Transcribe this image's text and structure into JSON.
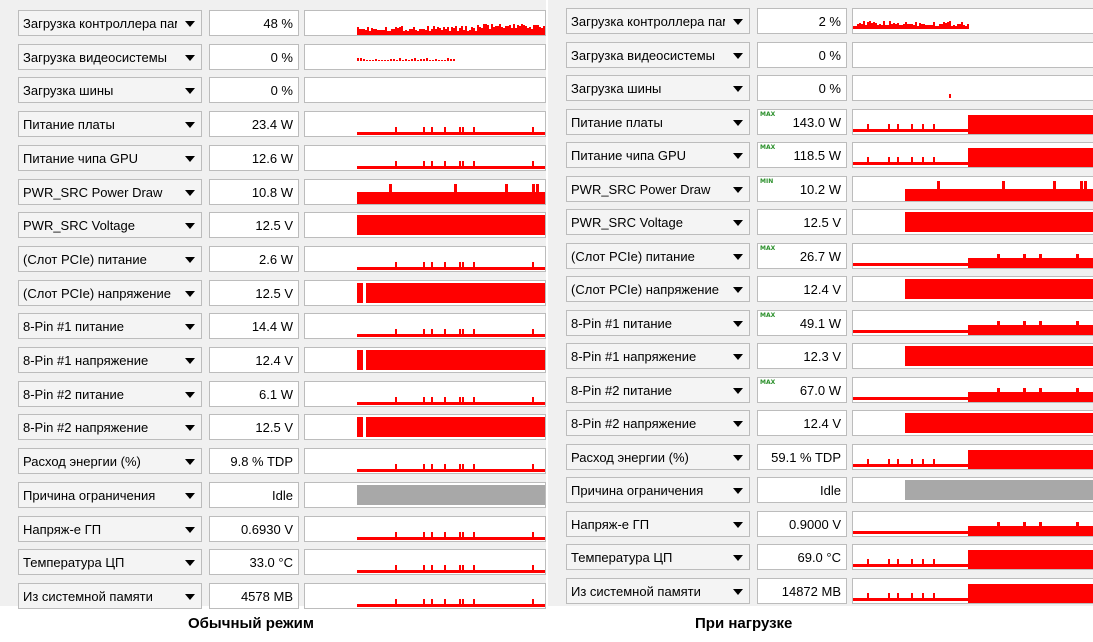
{
  "panels": [
    {
      "rows": [
        {
          "label": "Загрузка контроллера памяти",
          "value": "48 %",
          "badge": "",
          "graph": "busy"
        },
        {
          "label": "Загрузка видеосистемы",
          "value": "0 %",
          "badge": "",
          "graph": "tiny"
        },
        {
          "label": "Загрузка шины",
          "value": "0 %",
          "badge": "",
          "graph": "none"
        },
        {
          "label": "Питание платы",
          "value": "23.4 W",
          "badge": "",
          "graph": "low"
        },
        {
          "label": "Питание чипа GPU",
          "value": "12.6 W",
          "badge": "",
          "graph": "low"
        },
        {
          "label": "PWR_SRC Power Draw",
          "value": "10.8 W",
          "badge": "",
          "graph": "mid"
        },
        {
          "label": "PWR_SRC Voltage",
          "value": "12.5 V",
          "badge": "",
          "graph": "full"
        },
        {
          "label": "(Слот PCIe) питание",
          "value": "2.6 W",
          "badge": "",
          "graph": "low"
        },
        {
          "label": "(Слот PCIe) напряжение",
          "value": "12.5 V",
          "badge": "",
          "graph": "fullgap"
        },
        {
          "label": "8-Pin #1 питание",
          "value": "14.4 W",
          "badge": "",
          "graph": "low"
        },
        {
          "label": "8-Pin #1 напряжение",
          "value": "12.4 V",
          "badge": "",
          "graph": "fullgap"
        },
        {
          "label": "8-Pin #2 питание",
          "value": "6.1 W",
          "badge": "",
          "graph": "low"
        },
        {
          "label": "8-Pin #2 напряжение",
          "value": "12.5 V",
          "badge": "",
          "graph": "fullgap"
        },
        {
          "label": "Расход энергии (%)",
          "value": "9.8 % TDP",
          "badge": "",
          "graph": "low"
        },
        {
          "label": "Причина ограничения",
          "value": "Idle",
          "badge": "",
          "graph": "gray"
        },
        {
          "label": "Напряж-е ГП",
          "value": "0.6930 V",
          "badge": "",
          "graph": "low"
        },
        {
          "label": "Температура ЦП",
          "value": "33.0 °C",
          "badge": "",
          "graph": "low"
        },
        {
          "label": "Из системной памяти",
          "value": "4578 MB",
          "badge": "",
          "graph": "low"
        }
      ]
    },
    {
      "rows": [
        {
          "label": "Загрузка контроллера памяти",
          "value": "2 %",
          "badge": "",
          "graph": "lowstart"
        },
        {
          "label": "Загрузка видеосистемы",
          "value": "0 %",
          "badge": "",
          "graph": "none"
        },
        {
          "label": "Загрузка шины",
          "value": "0 %",
          "badge": "",
          "graph": "dot"
        },
        {
          "label": "Питание платы",
          "value": "143.0 W",
          "badge": "MAX",
          "graph": "step"
        },
        {
          "label": "Питание чипа GPU",
          "value": "118.5 W",
          "badge": "MAX",
          "graph": "step"
        },
        {
          "label": "PWR_SRC Power Draw",
          "value": "10.2 W",
          "badge": "MIN",
          "graph": "mid"
        },
        {
          "label": "PWR_SRC Voltage",
          "value": "12.5 V",
          "badge": "",
          "graph": "full"
        },
        {
          "label": "(Слот PCIe) питание",
          "value": "26.7 W",
          "badge": "MAX",
          "graph": "steplow"
        },
        {
          "label": "(Слот PCIe) напряжение",
          "value": "12.4 V",
          "badge": "",
          "graph": "full"
        },
        {
          "label": "8-Pin #1 питание",
          "value": "49.1 W",
          "badge": "MAX",
          "graph": "steplow"
        },
        {
          "label": "8-Pin #1 напряжение",
          "value": "12.3 V",
          "badge": "",
          "graph": "full"
        },
        {
          "label": "8-Pin #2 питание",
          "value": "67.0 W",
          "badge": "MAX",
          "graph": "steplow"
        },
        {
          "label": "8-Pin #2 напряжение",
          "value": "12.4 V",
          "badge": "",
          "graph": "full"
        },
        {
          "label": "Расход энергии (%)",
          "value": "59.1 % TDP",
          "badge": "",
          "graph": "step"
        },
        {
          "label": "Причина ограничения",
          "value": "Idle",
          "badge": "",
          "graph": "gray"
        },
        {
          "label": "Напряж-е ГП",
          "value": "0.9000 V",
          "badge": "",
          "graph": "steplow"
        },
        {
          "label": "Температура ЦП",
          "value": "69.0 °C",
          "badge": "",
          "graph": "step"
        },
        {
          "label": "Из системной памяти",
          "value": "14872 MB",
          "badge": "",
          "graph": "step"
        }
      ]
    }
  ],
  "captions": {
    "left": "Обычный режим",
    "right": "При нагрузке"
  },
  "colors": {
    "graph": "#ff0000",
    "graph_idle": "#a8a8a8"
  },
  "icons": {
    "dropdown": "chevron-down-icon"
  }
}
